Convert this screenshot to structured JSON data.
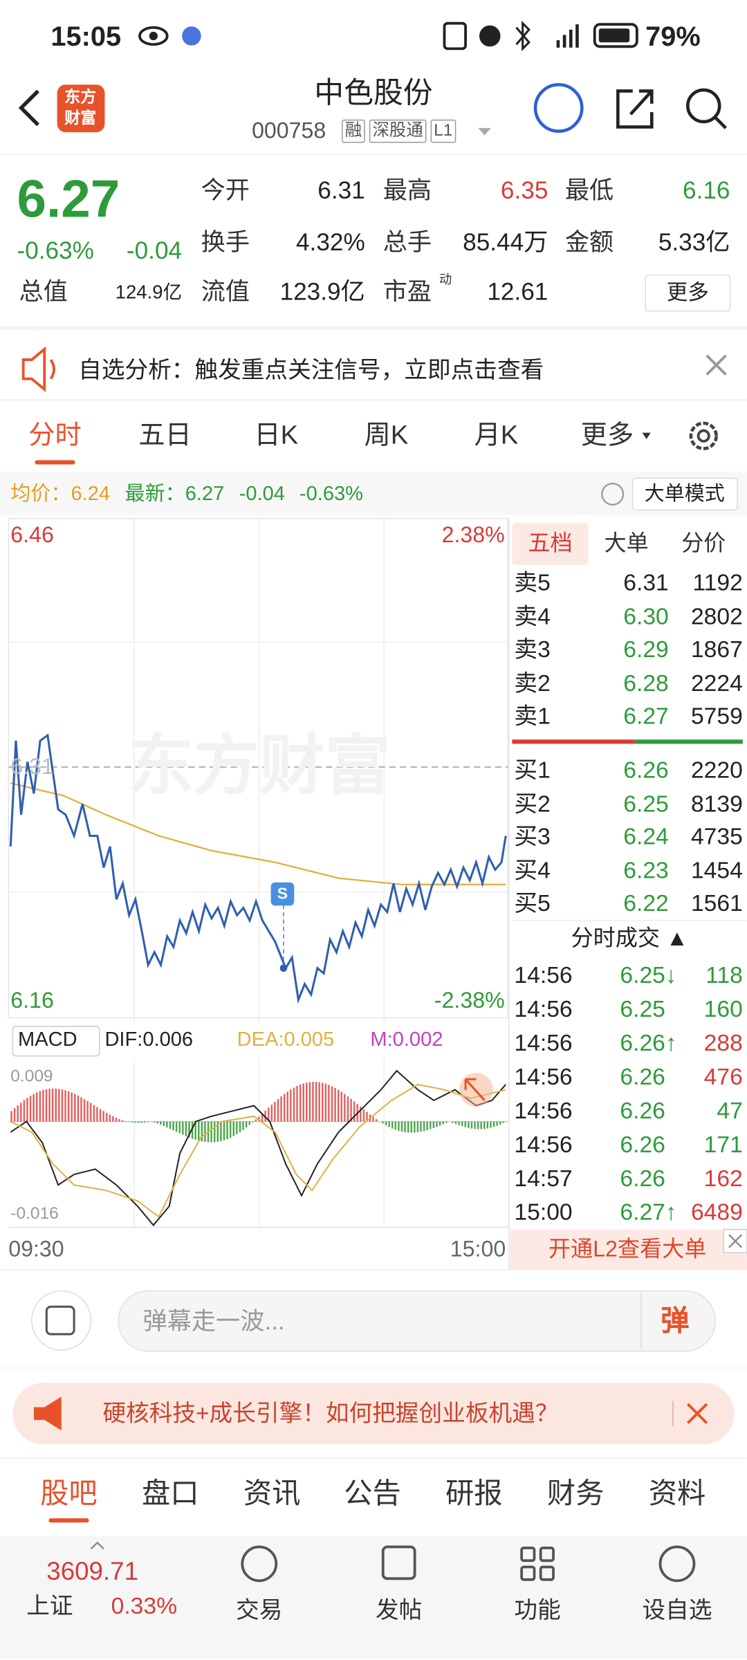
{
  "status": {
    "time": "15:05",
    "battery": "79%"
  },
  "header": {
    "logo": [
      "东方",
      "财富"
    ],
    "title": "中色股份",
    "code": "000758",
    "tags": [
      "融",
      "深股通",
      "L1"
    ]
  },
  "quote": {
    "price": "6.27",
    "change_pct": "-0.63%",
    "change": "-0.04",
    "items": [
      {
        "label": "今开",
        "value": "6.31"
      },
      {
        "label": "最高",
        "value": "6.35"
      },
      {
        "label": "最低",
        "value": "6.16"
      },
      {
        "label": "换手",
        "value": "4.32%"
      },
      {
        "label": "总手",
        "value": "85.44万"
      },
      {
        "label": "金额",
        "value": "5.33亿"
      },
      {
        "label": "总值",
        "value": "124.9亿"
      },
      {
        "label": "流值",
        "value": "123.9亿"
      },
      {
        "label": "市盈",
        "sup": "动",
        "value": "12.61"
      }
    ],
    "more": "更多"
  },
  "banner": "自选分析：触发重点关注信号，立即点击查看",
  "tabs": [
    "分时",
    "五日",
    "日K",
    "周K",
    "月K",
    "更多"
  ],
  "info": {
    "avg_label": "均价：",
    "avg": "6.24",
    "last_label": "最新：",
    "last": "6.27",
    "change": "-0.04",
    "pct": "-0.63%",
    "mode": "大单模式"
  },
  "chart": {
    "watermark": "东方财富",
    "y_top": "6.46",
    "pct_top": "2.38%",
    "y_mid": "6.31",
    "y_bottom": "6.16",
    "pct_bottom": "-2.38%",
    "marker": "S",
    "macd": {
      "label": "MACD",
      "dif": "DIF:0.006",
      "dea": "DEA:0.005",
      "m": "M:0.002",
      "top": "0.009",
      "bottom": "-0.016"
    },
    "x_start": "09:30",
    "x_end": "15:00"
  },
  "orderbook": {
    "tabs": [
      "五档",
      "大单",
      "分价"
    ],
    "asks": [
      {
        "label": "卖5",
        "price": "6.31",
        "vol": "1192"
      },
      {
        "label": "卖4",
        "price": "6.30",
        "vol": "2802"
      },
      {
        "label": "卖3",
        "price": "6.29",
        "vol": "1867"
      },
      {
        "label": "卖2",
        "price": "6.28",
        "vol": "2224"
      },
      {
        "label": "卖1",
        "price": "6.27",
        "vol": "5759"
      }
    ],
    "bids": [
      {
        "label": "买1",
        "price": "6.26",
        "vol": "2220"
      },
      {
        "label": "买2",
        "price": "6.25",
        "vol": "8139"
      },
      {
        "label": "买3",
        "price": "6.24",
        "vol": "4735"
      },
      {
        "label": "买4",
        "price": "6.23",
        "vol": "1454"
      },
      {
        "label": "买5",
        "price": "6.22",
        "vol": "1561"
      }
    ]
  },
  "trades": {
    "title": "分时成交 ▲",
    "rows": [
      {
        "time": "14:56",
        "price": "6.25↓",
        "vol": "118",
        "color": "#2e9b3a"
      },
      {
        "time": "14:56",
        "price": "6.25",
        "vol": "160",
        "color": "#2e9b3a"
      },
      {
        "time": "14:56",
        "price": "6.26↑",
        "vol": "288",
        "color": "#d93a37"
      },
      {
        "time": "14:56",
        "price": "6.26",
        "vol": "476",
        "color": "#d93a37"
      },
      {
        "time": "14:56",
        "price": "6.26",
        "vol": "47",
        "color": "#2e9b3a"
      },
      {
        "time": "14:56",
        "price": "6.26",
        "vol": "171",
        "color": "#2e9b3a"
      },
      {
        "time": "14:57",
        "price": "6.26",
        "vol": "162",
        "color": "#d93a37"
      },
      {
        "time": "15:00",
        "price": "6.27↑",
        "vol": "6489",
        "color": "#d93a37"
      }
    ],
    "l2": "开通L2查看大单"
  },
  "comment": {
    "placeholder": "弹幕走一波...",
    "button": "弹"
  },
  "ad": "硬核科技+成长引擎！如何把握创业板机遇？",
  "bottom_tabs": [
    "股吧",
    "盘口",
    "资讯",
    "公告",
    "研报",
    "财务",
    "资料"
  ],
  "nav": {
    "index_value": "3609.71",
    "index_name": "上证",
    "index_pct": "0.33%",
    "items": [
      "交易",
      "发帖",
      "功能",
      "设自选"
    ]
  }
}
